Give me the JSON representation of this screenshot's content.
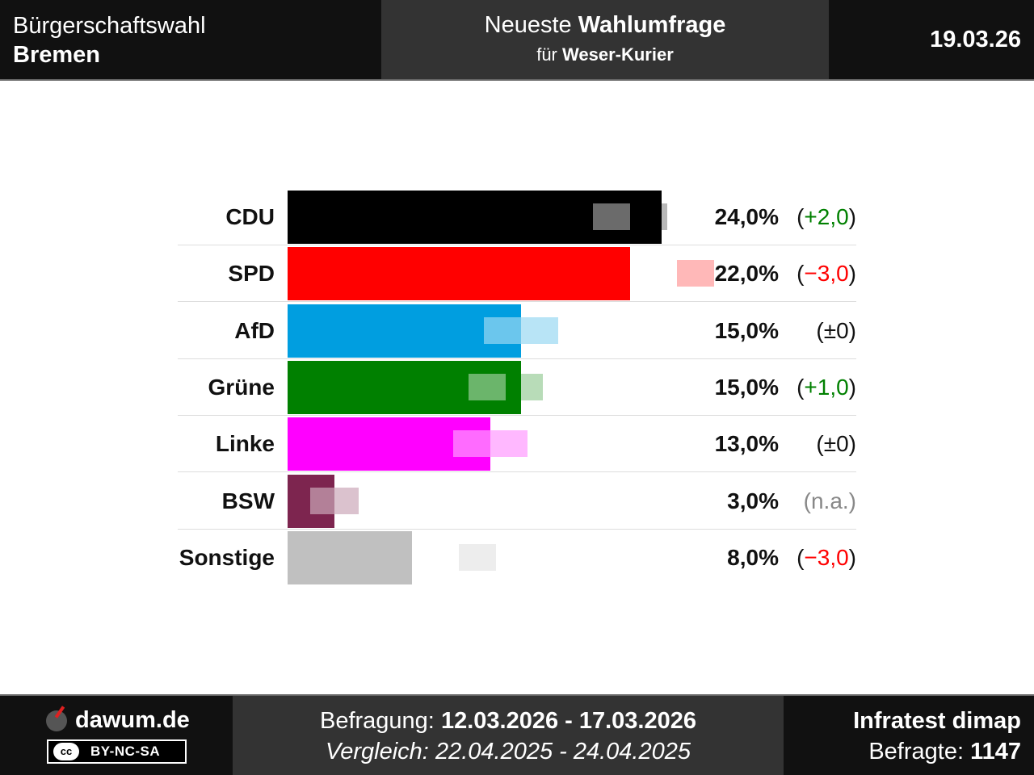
{
  "header": {
    "election_type": "Bürgerschaftswahl",
    "region": "Bremen",
    "title_prefix": "Neueste",
    "title_bold": "Wahlumfrage",
    "subtitle_prefix": "für",
    "subtitle_bold": "Weser-Kurier",
    "date": "19.03.26"
  },
  "chart_data": {
    "type": "bar",
    "orientation": "horizontal",
    "categories": [
      "CDU",
      "SPD",
      "AfD",
      "Grüne",
      "Linke",
      "BSW",
      "Sonstige"
    ],
    "series": [
      {
        "values": [
          24.0,
          22.0,
          15.0,
          15.0,
          13.0,
          3.0,
          8.0
        ]
      },
      {
        "values": [
          22.0,
          25.0,
          15.0,
          14.0,
          13.0,
          null,
          11.0
        ]
      }
    ],
    "value_labels": [
      "24,0%",
      "22,0%",
      "15,0%",
      "15,0%",
      "13,0%",
      "3,0%",
      "8,0%"
    ],
    "diff_labels": [
      "+2,0",
      "−3,0",
      "±0",
      "+1,0",
      "±0",
      "n.a.",
      "−3,0"
    ],
    "diff_status": [
      "up",
      "down",
      "neutral",
      "up",
      "neutral",
      "na",
      "down"
    ],
    "colors": [
      "#000000",
      "#ff0000",
      "#009ee0",
      "#008000",
      "#ff00ff",
      "#7d254f",
      "#c0c0c0"
    ],
    "status_colors": {
      "up": "#008000",
      "down": "#ff0000",
      "neutral": "#111111",
      "na": "#888888"
    },
    "xlim": [
      0,
      24
    ]
  },
  "footer": {
    "site": "dawum.de",
    "license": "BY-NC-SA",
    "license_logo": "cc",
    "survey_label": "Befragung:",
    "survey_period": "12.03.2026 - 17.03.2026",
    "compare_label": "Vergleich:",
    "compare_period": "22.04.2025 - 24.04.2025",
    "institute": "Infratest dimap",
    "respondents_label": "Befragte:",
    "respondents": "1147"
  }
}
